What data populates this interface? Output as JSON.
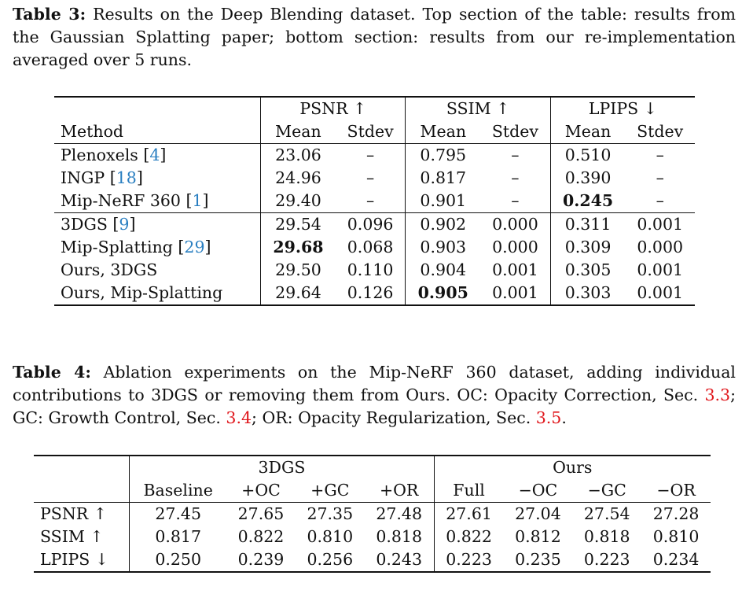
{
  "table3": {
    "caption_label": "Table 3:",
    "caption_text": "Results on the Deep Blending dataset. Top section of the table: results from the Gaussian Splatting paper; bottom section: results from our re-implementation averaged over 5 runs.",
    "groups": [
      "PSNR ↑",
      "SSIM ↑",
      "LPIPS ↓"
    ],
    "method_header": "Method",
    "subheaders": [
      "Mean",
      "Stdev",
      "Mean",
      "Stdev",
      "Mean",
      "Stdev"
    ],
    "top_rows": [
      {
        "method": "Plenoxels",
        "ref": "4",
        "cells": [
          "23.06",
          "–",
          "0.795",
          "–",
          "0.510",
          "–"
        ]
      },
      {
        "method": "INGP",
        "ref": "18",
        "cells": [
          "24.96",
          "–",
          "0.817",
          "–",
          "0.390",
          "–"
        ]
      },
      {
        "method": "Mip-NeRF 360",
        "ref": "1",
        "cells": [
          "29.40",
          "–",
          "0.901",
          "–",
          "0.245",
          "–"
        ]
      }
    ],
    "bottom_rows": [
      {
        "method": "3DGS",
        "ref": "9",
        "cells": [
          "29.54",
          "0.096",
          "0.902",
          "0.000",
          "0.311",
          "0.001"
        ]
      },
      {
        "method": "Mip-Splatting",
        "ref": "29",
        "cells": [
          "29.68",
          "0.068",
          "0.903",
          "0.000",
          "0.309",
          "0.000"
        ]
      },
      {
        "method": "Ours, 3DGS",
        "ref": "",
        "cells": [
          "29.50",
          "0.110",
          "0.904",
          "0.001",
          "0.305",
          "0.001"
        ]
      },
      {
        "method": "Ours, Mip-Splatting",
        "ref": "",
        "cells": [
          "29.64",
          "0.126",
          "0.905",
          "0.001",
          "0.303",
          "0.001"
        ]
      }
    ]
  },
  "table4": {
    "caption_label": "Table 4:",
    "caption_parts": [
      "Ablation experiments on the Mip-NeRF 360 dataset, adding individual contributions to 3DGS or removing them from Ours. OC: Opacity Correction, Sec. ",
      "3.3",
      "; GC: Growth Control, Sec. ",
      "3.4",
      "; OR: Opacity Regularization, Sec. ",
      "3.5",
      "."
    ],
    "group_3dgs": "3DGS",
    "group_ours": "Ours",
    "subheaders": [
      "Baseline",
      "+OC",
      "+GC",
      "+OR",
      "Full",
      "−OC",
      "−GC",
      "−OR"
    ],
    "rows": [
      {
        "metric": "PSNR ↑",
        "cells": [
          "27.45",
          "27.65",
          "27.35",
          "27.48",
          "27.61",
          "27.04",
          "27.54",
          "27.28"
        ]
      },
      {
        "metric": "SSIM ↑",
        "cells": [
          "0.817",
          "0.822",
          "0.810",
          "0.818",
          "0.822",
          "0.812",
          "0.818",
          "0.810"
        ]
      },
      {
        "metric": "LPIPS ↓",
        "cells": [
          "0.250",
          "0.239",
          "0.256",
          "0.243",
          "0.223",
          "0.235",
          "0.223",
          "0.234"
        ]
      }
    ]
  }
}
